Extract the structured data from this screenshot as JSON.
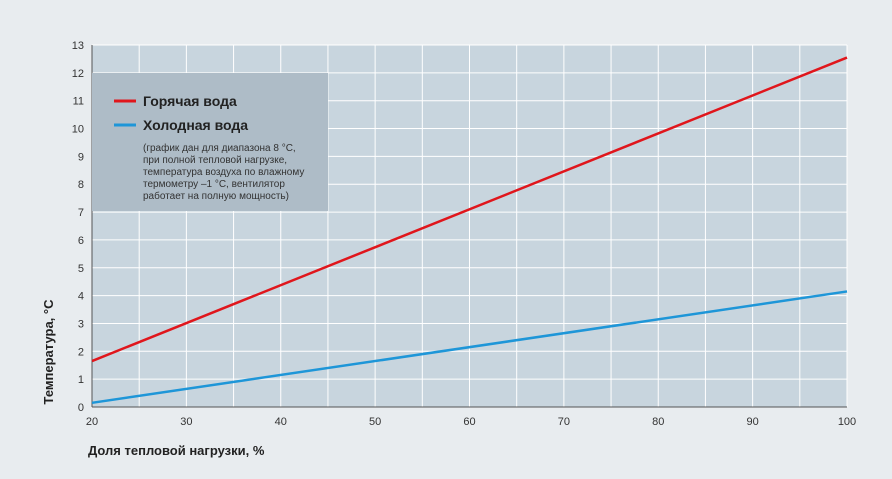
{
  "chart_data": {
    "type": "line",
    "xlabel": "Доля тепловой нагрузки, %",
    "ylabel": "Температура, °С",
    "xlim": [
      20,
      100
    ],
    "ylim": [
      0,
      13
    ],
    "x_ticks": [
      20,
      30,
      40,
      50,
      60,
      70,
      80,
      90,
      100
    ],
    "y_ticks": [
      0,
      1,
      2,
      3,
      4,
      5,
      6,
      7,
      8,
      9,
      10,
      11,
      12,
      13
    ],
    "grid": true,
    "legend_position": "top-left",
    "series": [
      {
        "name": "Горячая вода",
        "color": "#e0161c",
        "x": [
          20,
          100
        ],
        "y": [
          1.65,
          12.55
        ]
      },
      {
        "name": "Холодная вода",
        "color": "#1e96d8",
        "x": [
          20,
          100
        ],
        "y": [
          0.15,
          4.15
        ]
      }
    ],
    "note_lines": [
      "(график дан для диапазона 8 °С,",
      "при полной тепловой нагрузке,",
      "температура воздуха по влажному",
      "термометру –1 °С, вентилятор",
      "работает на полную мощность)"
    ]
  }
}
